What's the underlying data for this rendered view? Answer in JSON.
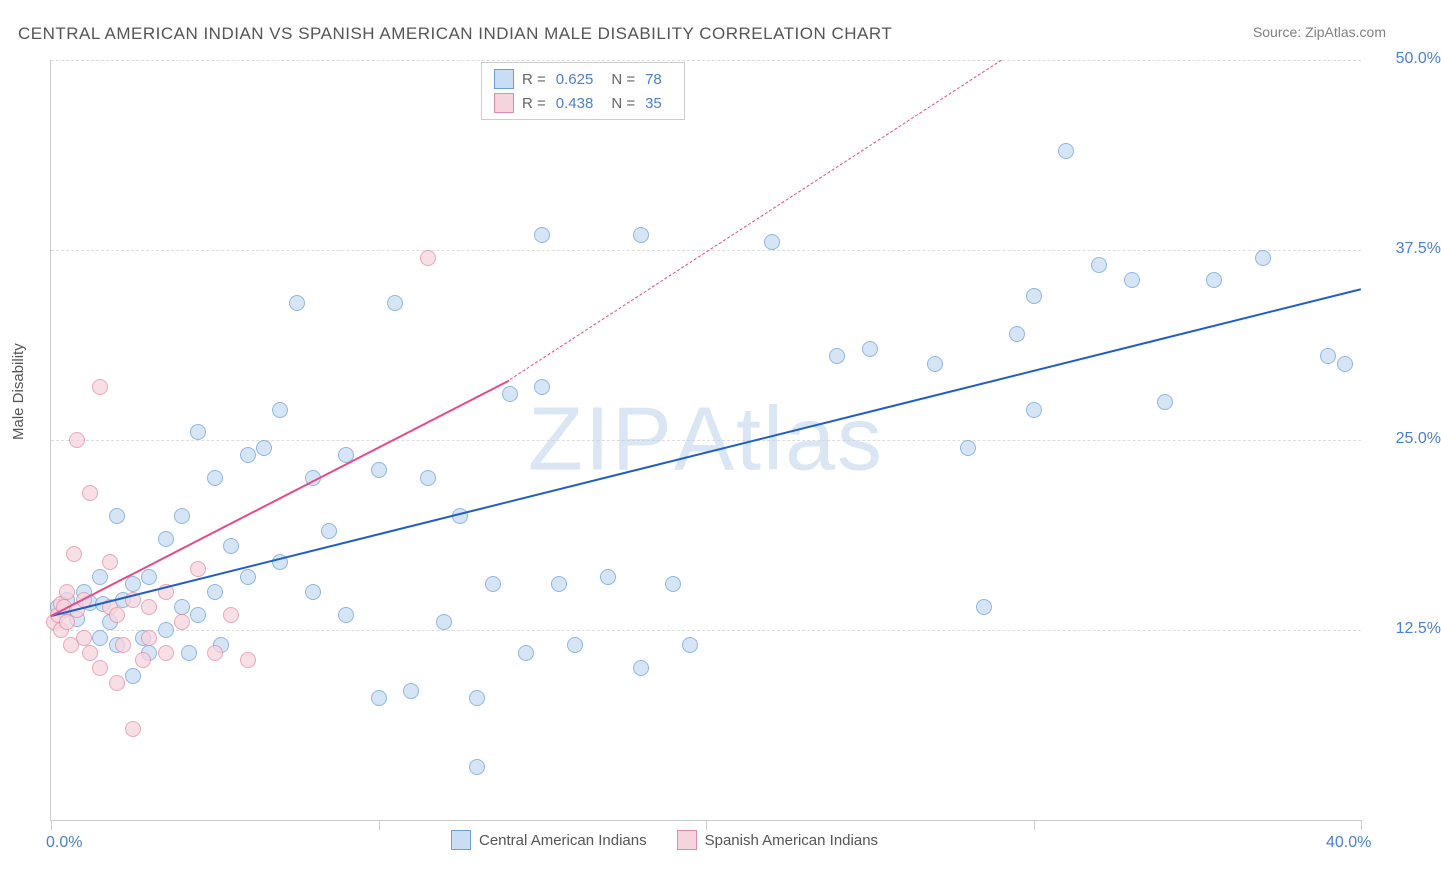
{
  "title": "CENTRAL AMERICAN INDIAN VS SPANISH AMERICAN INDIAN MALE DISABILITY CORRELATION CHART",
  "source": "Source: ZipAtlas.com",
  "y_axis_label": "Male Disability",
  "watermark_a": "ZIP",
  "watermark_b": "Atlas",
  "chart": {
    "type": "scatter",
    "xlim": [
      0,
      40
    ],
    "ylim": [
      0,
      50
    ],
    "x_ticks": [
      0,
      10,
      20,
      30,
      40
    ],
    "x_tick_labels": [
      "0.0%",
      "",
      "",
      "",
      "40.0%"
    ],
    "y_ticks": [
      12.5,
      25.0,
      37.5,
      50.0
    ],
    "y_tick_labels": [
      "12.5%",
      "25.0%",
      "37.5%",
      "50.0%"
    ],
    "grid_color": "#dddddd",
    "background": "#ffffff",
    "series": [
      {
        "name": "Central American Indians",
        "marker_fill": "#c9ddf4",
        "marker_stroke": "#6a9fd8",
        "marker_size": 14,
        "marker_opacity": 0.75,
        "trend_color": "#1f5fc4",
        "trend_width": 2.5,
        "trend_dash": "none",
        "trend_start": [
          0,
          13.5
        ],
        "trend_end": [
          40,
          35.0
        ],
        "r": "0.625",
        "n": "78",
        "points": [
          [
            0.2,
            14.0
          ],
          [
            0.4,
            13.8
          ],
          [
            0.5,
            14.5
          ],
          [
            0.8,
            13.2
          ],
          [
            1.0,
            15.0
          ],
          [
            1.2,
            14.3
          ],
          [
            1.5,
            16.0
          ],
          [
            1.5,
            12.0
          ],
          [
            1.6,
            14.2
          ],
          [
            1.8,
            13.0
          ],
          [
            2.0,
            20.0
          ],
          [
            2.0,
            11.5
          ],
          [
            2.2,
            14.5
          ],
          [
            2.5,
            15.5
          ],
          [
            2.5,
            9.5
          ],
          [
            2.8,
            12.0
          ],
          [
            3.0,
            16.0
          ],
          [
            3.0,
            11.0
          ],
          [
            3.5,
            18.5
          ],
          [
            3.5,
            12.5
          ],
          [
            4.0,
            20.0
          ],
          [
            4.0,
            14.0
          ],
          [
            4.2,
            11.0
          ],
          [
            4.5,
            25.5
          ],
          [
            4.5,
            13.5
          ],
          [
            5.0,
            15.0
          ],
          [
            5.0,
            22.5
          ],
          [
            5.2,
            11.5
          ],
          [
            5.5,
            18.0
          ],
          [
            6.0,
            24.0
          ],
          [
            6.0,
            16.0
          ],
          [
            6.5,
            24.5
          ],
          [
            7.0,
            17.0
          ],
          [
            7.0,
            27.0
          ],
          [
            7.5,
            34.0
          ],
          [
            8.0,
            22.5
          ],
          [
            8.0,
            15.0
          ],
          [
            8.5,
            19.0
          ],
          [
            9.0,
            24.0
          ],
          [
            9.0,
            13.5
          ],
          [
            10.0,
            23.0
          ],
          [
            10.0,
            8.0
          ],
          [
            10.5,
            34.0
          ],
          [
            11.0,
            8.5
          ],
          [
            11.5,
            22.5
          ],
          [
            12.0,
            13.0
          ],
          [
            12.5,
            20.0
          ],
          [
            13.0,
            8.0
          ],
          [
            13.0,
            3.5
          ],
          [
            13.5,
            15.5
          ],
          [
            14.0,
            28.0
          ],
          [
            14.5,
            11.0
          ],
          [
            15.0,
            28.5
          ],
          [
            15.5,
            15.5
          ],
          [
            16.0,
            11.5
          ],
          [
            17.0,
            16.0
          ],
          [
            18.0,
            38.5
          ],
          [
            18.0,
            10.0
          ],
          [
            19.0,
            15.5
          ],
          [
            22.0,
            38.0
          ],
          [
            24.0,
            30.5
          ],
          [
            25.0,
            31.0
          ],
          [
            27.0,
            30.0
          ],
          [
            28.0,
            24.5
          ],
          [
            28.5,
            14.0
          ],
          [
            29.5,
            32.0
          ],
          [
            30.0,
            34.5
          ],
          [
            30.0,
            27.0
          ],
          [
            31.0,
            44.0
          ],
          [
            32.0,
            36.5
          ],
          [
            33.0,
            35.5
          ],
          [
            34.0,
            27.5
          ],
          [
            35.5,
            35.5
          ],
          [
            37.0,
            37.0
          ],
          [
            39.0,
            30.5
          ],
          [
            39.5,
            30.0
          ],
          [
            15.0,
            38.5
          ],
          [
            19.5,
            11.5
          ]
        ]
      },
      {
        "name": "Spanish American Indians",
        "marker_fill": "#f6d4dd",
        "marker_stroke": "#e48aa5",
        "marker_size": 14,
        "marker_opacity": 0.75,
        "trend_color": "#e64a8b",
        "trend_width": 2.5,
        "trend_dash": "dashed-after",
        "trend_solid_end": [
          14,
          29.0
        ],
        "trend_start": [
          0,
          13.5
        ],
        "trend_end": [
          29,
          50.0
        ],
        "r": "0.438",
        "n": "35",
        "points": [
          [
            0.1,
            13.0
          ],
          [
            0.2,
            13.5
          ],
          [
            0.3,
            14.2
          ],
          [
            0.3,
            12.5
          ],
          [
            0.4,
            14.0
          ],
          [
            0.5,
            13.0
          ],
          [
            0.5,
            15.0
          ],
          [
            0.6,
            11.5
          ],
          [
            0.7,
            17.5
          ],
          [
            0.8,
            13.8
          ],
          [
            0.8,
            25.0
          ],
          [
            1.0,
            12.0
          ],
          [
            1.0,
            14.5
          ],
          [
            1.2,
            21.5
          ],
          [
            1.2,
            11.0
          ],
          [
            1.5,
            10.0
          ],
          [
            1.5,
            28.5
          ],
          [
            1.8,
            14.0
          ],
          [
            1.8,
            17.0
          ],
          [
            2.0,
            9.0
          ],
          [
            2.0,
            13.5
          ],
          [
            2.2,
            11.5
          ],
          [
            2.5,
            14.5
          ],
          [
            2.5,
            6.0
          ],
          [
            2.8,
            10.5
          ],
          [
            3.0,
            12.0
          ],
          [
            3.0,
            14.0
          ],
          [
            3.5,
            11.0
          ],
          [
            3.5,
            15.0
          ],
          [
            4.0,
            13.0
          ],
          [
            4.5,
            16.5
          ],
          [
            5.0,
            11.0
          ],
          [
            5.5,
            13.5
          ],
          [
            6.0,
            10.5
          ],
          [
            11.5,
            37.0
          ]
        ]
      }
    ]
  },
  "legend_bottom": [
    {
      "label": "Central American Indians",
      "fill": "#c9ddf4",
      "stroke": "#6a9fd8"
    },
    {
      "label": "Spanish American Indians",
      "fill": "#f6d4dd",
      "stroke": "#e48aa5"
    }
  ],
  "legend_top": {
    "r_label": "R =",
    "n_label": "N ="
  }
}
